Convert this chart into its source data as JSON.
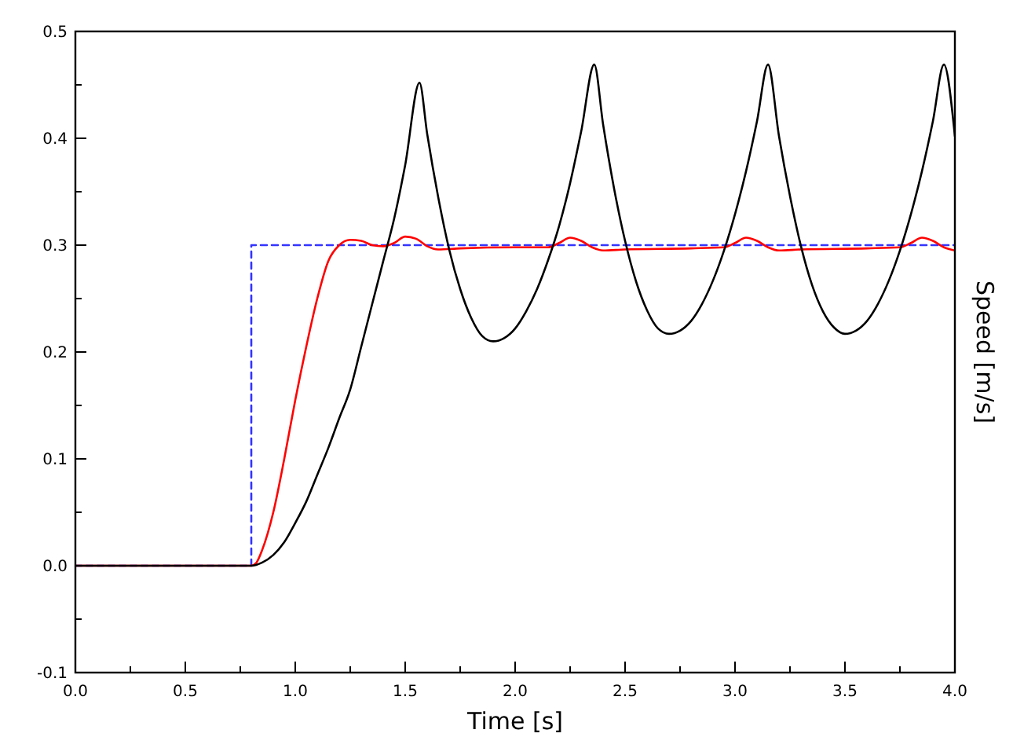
{
  "chart_data": {
    "type": "line",
    "xlabel": "Time [s]",
    "ylabel": "Speed [m/s]",
    "xlim": [
      0,
      4
    ],
    "ylim": [
      -0.1,
      0.5
    ],
    "xticks": [
      {
        "value": 0,
        "label": "0.0"
      },
      {
        "value": 0.25,
        "label": null
      },
      {
        "value": 0.5,
        "label": "0.5"
      },
      {
        "value": 0.75,
        "label": null
      },
      {
        "value": 1,
        "label": "1.0"
      },
      {
        "value": 1.25,
        "label": null
      },
      {
        "value": 1.5,
        "label": "1.5"
      },
      {
        "value": 1.75,
        "label": null
      },
      {
        "value": 2,
        "label": "2.0"
      },
      {
        "value": 2.25,
        "label": null
      },
      {
        "value": 2.5,
        "label": "2.5"
      },
      {
        "value": 2.75,
        "label": null
      },
      {
        "value": 3,
        "label": "3.0"
      },
      {
        "value": 3.25,
        "label": null
      },
      {
        "value": 3.5,
        "label": "3.5"
      },
      {
        "value": 3.75,
        "label": null
      },
      {
        "value": 4,
        "label": "4.0"
      }
    ],
    "yticks": [
      -0.1,
      {
        "value": -0.05,
        "label": null
      },
      {
        "value": 0,
        "label": "0.0"
      },
      {
        "value": 0.05,
        "label": null
      },
      0.1,
      {
        "value": 0.15,
        "label": null
      },
      0.2,
      {
        "value": 0.25,
        "label": null
      },
      0.3,
      {
        "value": 0.35,
        "label": null
      },
      0.4,
      {
        "value": 0.45,
        "label": null
      },
      0.5
    ],
    "series": [
      {
        "type": "step",
        "color": "#3333ff",
        "line_style": "dashed",
        "x": [
          0,
          0.8,
          4
        ],
        "values": [
          0,
          0.3,
          0.3
        ]
      },
      {
        "color": "#ff0000",
        "line_style": "solid",
        "x": [
          0,
          0.8,
          0.82,
          0.85,
          0.9,
          0.95,
          1.0,
          1.05,
          1.1,
          1.15,
          1.2,
          1.25,
          1.3,
          1.35,
          1.4,
          1.45,
          1.5,
          1.55,
          1.6,
          1.65,
          1.75,
          2.0,
          2.15,
          2.2,
          2.25,
          2.3,
          2.35,
          2.4,
          2.5,
          2.8,
          2.95,
          3.0,
          3.05,
          3.1,
          3.15,
          3.2,
          3.3,
          3.6,
          3.75,
          3.8,
          3.85,
          3.9,
          3.95,
          4.0
        ],
        "values": [
          0,
          0,
          0.002,
          0.015,
          0.05,
          0.1,
          0.155,
          0.205,
          0.25,
          0.285,
          0.3,
          0.305,
          0.304,
          0.3,
          0.299,
          0.302,
          0.308,
          0.306,
          0.299,
          0.296,
          0.297,
          0.298,
          0.298,
          0.302,
          0.307,
          0.304,
          0.298,
          0.295,
          0.296,
          0.297,
          0.298,
          0.302,
          0.307,
          0.304,
          0.298,
          0.295,
          0.296,
          0.297,
          0.298,
          0.302,
          0.307,
          0.304,
          0.298,
          0.295
        ]
      },
      {
        "color": "#000000",
        "line_style": "solid",
        "x": [
          0,
          0.8,
          0.85,
          0.9,
          0.95,
          1.0,
          1.05,
          1.1,
          1.15,
          1.2,
          1.25,
          1.3,
          1.35,
          1.4,
          1.45,
          1.5,
          1.565,
          1.6,
          1.65,
          1.7,
          1.75,
          1.8,
          1.85,
          1.9,
          1.95,
          2.0,
          2.05,
          2.1,
          2.15,
          2.2,
          2.25,
          2.3,
          2.36,
          2.4,
          2.45,
          2.5,
          2.55,
          2.6,
          2.65,
          2.7,
          2.75,
          2.8,
          2.85,
          2.9,
          2.95,
          3.0,
          3.05,
          3.1,
          3.15,
          3.2,
          3.25,
          3.3,
          3.35,
          3.4,
          3.45,
          3.5,
          3.55,
          3.6,
          3.65,
          3.7,
          3.75,
          3.8,
          3.85,
          3.9,
          3.95,
          4.0
        ],
        "values": [
          0,
          0,
          0.003,
          0.01,
          0.022,
          0.04,
          0.06,
          0.085,
          0.11,
          0.138,
          0.165,
          0.205,
          0.245,
          0.285,
          0.325,
          0.375,
          0.452,
          0.404,
          0.345,
          0.296,
          0.259,
          0.232,
          0.215,
          0.21,
          0.213,
          0.222,
          0.238,
          0.259,
          0.286,
          0.318,
          0.358,
          0.406,
          0.469,
          0.413,
          0.353,
          0.304,
          0.266,
          0.239,
          0.222,
          0.217,
          0.22,
          0.229,
          0.245,
          0.267,
          0.295,
          0.329,
          0.369,
          0.416,
          0.469,
          0.402,
          0.346,
          0.299,
          0.263,
          0.238,
          0.223,
          0.217,
          0.22,
          0.229,
          0.245,
          0.267,
          0.295,
          0.329,
          0.369,
          0.416,
          0.469,
          0.402
        ]
      }
    ]
  }
}
